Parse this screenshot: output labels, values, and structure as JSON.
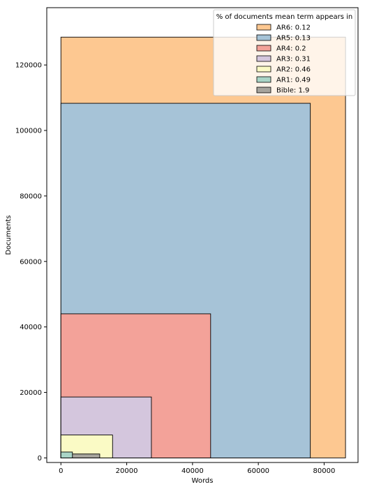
{
  "chart_data": {
    "type": "area",
    "title": "",
    "xlabel": "Words",
    "ylabel": "Documents",
    "xlim": [
      -4300,
      90300
    ],
    "ylim": [
      -1400,
      137500
    ],
    "xticks": [
      0,
      20000,
      40000,
      60000,
      80000
    ],
    "yticks": [
      0,
      20000,
      40000,
      60000,
      80000,
      100000,
      120000
    ],
    "grid": false,
    "legend": {
      "title": "% of documents mean term appears in",
      "placement": "upper-right"
    },
    "series": [
      {
        "name": "AR6: 0.12",
        "words": 86500,
        "documents": 128500,
        "color": "#fdc891"
      },
      {
        "name": "AR5: 0.13",
        "words": 75800,
        "documents": 108300,
        "color": "#a6c3d7"
      },
      {
        "name": "AR4: 0.2",
        "words": 45500,
        "documents": 44000,
        "color": "#f3a299"
      },
      {
        "name": "AR3: 0.31",
        "words": 27500,
        "documents": 18600,
        "color": "#d4c6dd"
      },
      {
        "name": "AR2: 0.46",
        "words": 15700,
        "documents": 7000,
        "color": "#fafac5"
      },
      {
        "name": "AR1: 0.49",
        "words": 3500,
        "documents": 1800,
        "color": "#a9d4c6"
      },
      {
        "name": "Bible: 1.9",
        "words": 11800,
        "documents": 1200,
        "color": "#a6a49d"
      }
    ]
  }
}
